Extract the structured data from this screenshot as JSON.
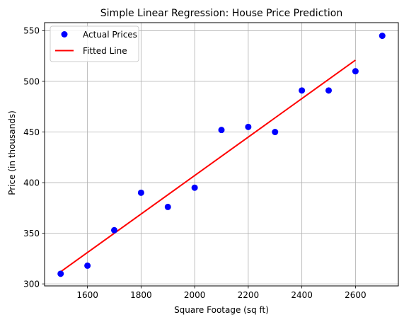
{
  "chart_data": {
    "type": "scatter",
    "title": "Simple Linear Regression: House Price Prediction",
    "xlabel": "Square Footage (sq ft)",
    "ylabel": "Price (in thousands)",
    "xlim": [
      1440,
      2760
    ],
    "ylim": [
      298,
      558
    ],
    "x_ticks": [
      1600,
      1800,
      2000,
      2200,
      2400,
      2600
    ],
    "y_ticks": [
      300,
      350,
      400,
      450,
      500,
      550
    ],
    "grid": true,
    "legend_position": "top-left",
    "series": [
      {
        "name": "Actual Prices",
        "kind": "scatter",
        "color": "#0000ff",
        "points": [
          {
            "x": 1500,
            "y": 310
          },
          {
            "x": 1600,
            "y": 318
          },
          {
            "x": 1700,
            "y": 353
          },
          {
            "x": 1800,
            "y": 390
          },
          {
            "x": 1900,
            "y": 376
          },
          {
            "x": 2000,
            "y": 395
          },
          {
            "x": 2100,
            "y": 452
          },
          {
            "x": 2200,
            "y": 455
          },
          {
            "x": 2300,
            "y": 450
          },
          {
            "x": 2400,
            "y": 491
          },
          {
            "x": 2500,
            "y": 491
          },
          {
            "x": 2600,
            "y": 510
          },
          {
            "x": 2700,
            "y": 545
          }
        ]
      },
      {
        "name": "Fitted Line",
        "kind": "line",
        "color": "#ff0000",
        "points": [
          {
            "x": 1500,
            "y": 312
          },
          {
            "x": 2600,
            "y": 521
          }
        ]
      }
    ]
  }
}
